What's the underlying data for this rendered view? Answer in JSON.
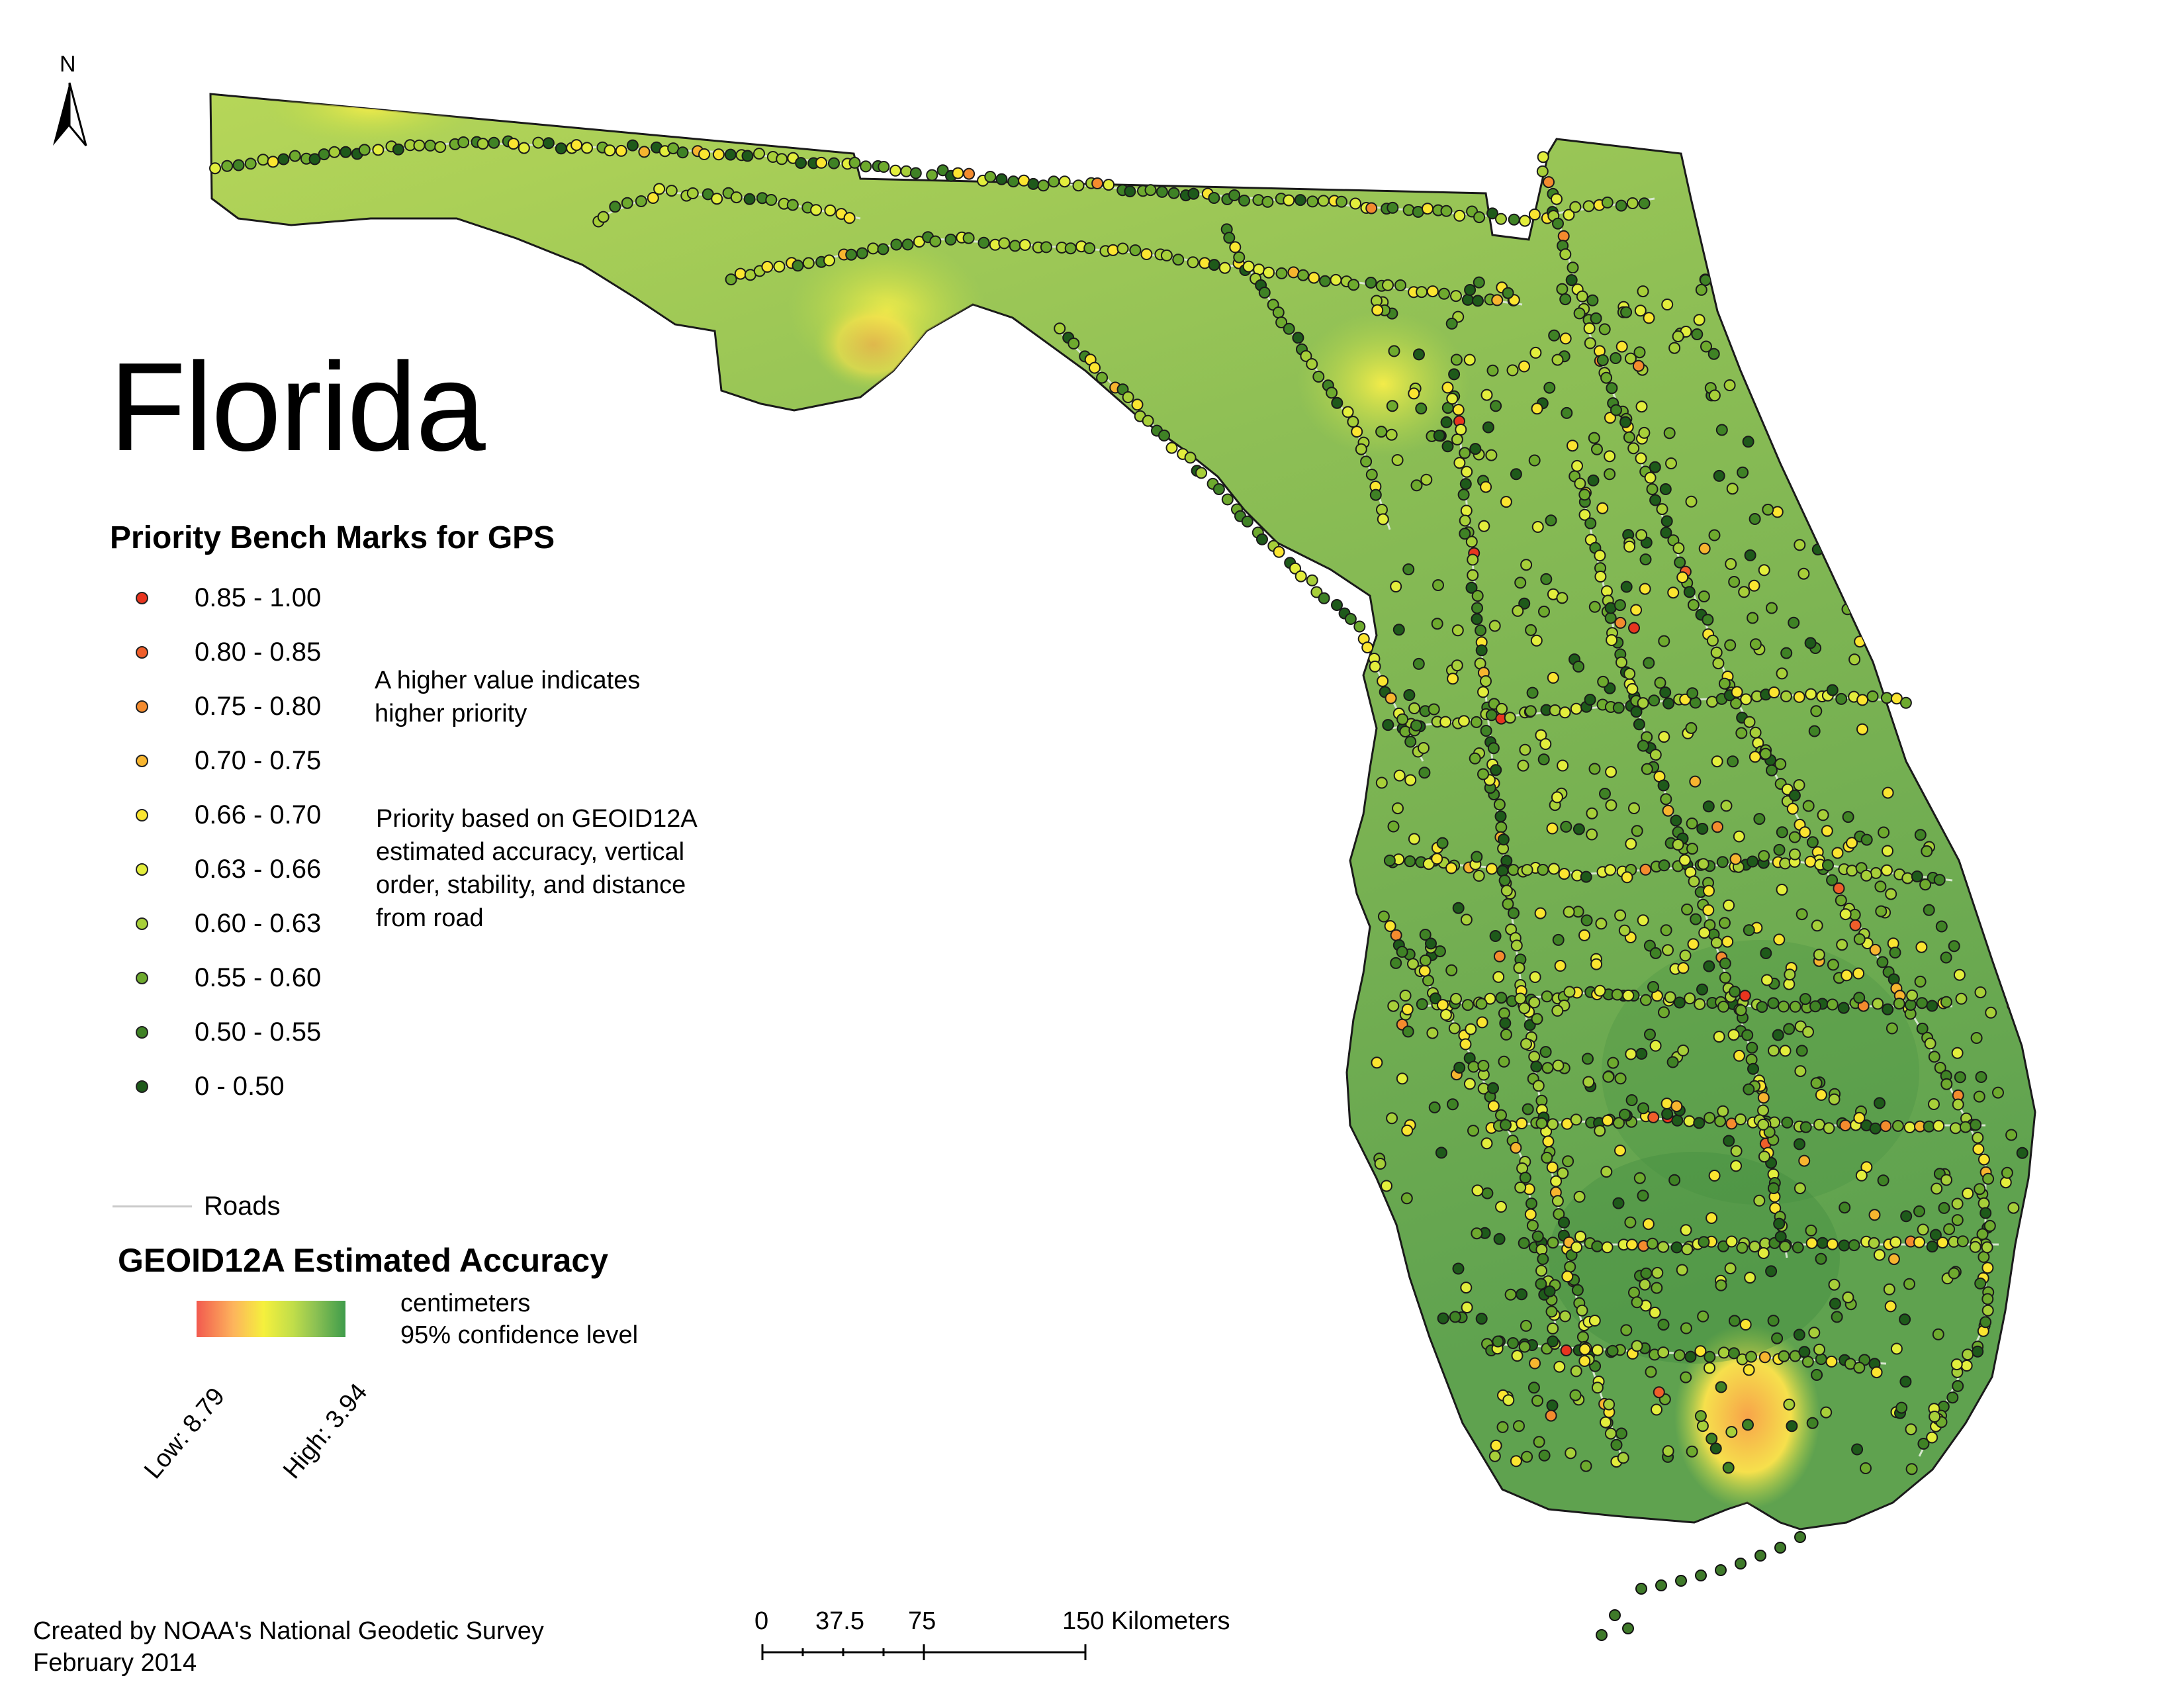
{
  "title": "Florida",
  "north_arrow": {
    "label": "N"
  },
  "priority_legend": {
    "title": "Priority Bench Marks for GPS",
    "classes": [
      {
        "label": "0.85 - 1.00",
        "color": "#e8351f"
      },
      {
        "label": "0.80 - 0.85",
        "color": "#ef5e2a"
      },
      {
        "label": "0.75 - 0.80",
        "color": "#f48b2e"
      },
      {
        "label": "0.70 - 0.75",
        "color": "#f7b52f"
      },
      {
        "label": "0.66 - 0.70",
        "color": "#fbe530"
      },
      {
        "label": "0.63 - 0.66",
        "color": "#e3ee3c"
      },
      {
        "label": "0.60 - 0.63",
        "color": "#a7cf39"
      },
      {
        "label": "0.55 - 0.60",
        "color": "#6eaa2e"
      },
      {
        "label": "0.50 - 0.55",
        "color": "#3f8225"
      },
      {
        "label": "0 - 0.50",
        "color": "#1e5a1a"
      }
    ],
    "note_1": [
      "A higher value indicates",
      "higher priority"
    ],
    "note_2": [
      "Priority based on GEOID12A",
      "estimated accuracy, vertical",
      "order, stability, and distance",
      "from road"
    ]
  },
  "roads_legend": {
    "label": "Roads",
    "color": "#c9c9c9"
  },
  "accuracy_legend": {
    "title": "GEOID12A Estimated Accuracy",
    "units": "centimeters",
    "confidence": "95% confidence level",
    "low_label": "Low: 8.79",
    "high_label": "High: 3.94",
    "low_color": "#f25a4f",
    "high_color": "#3f9c4b"
  },
  "scale_bar": {
    "ticks": [
      "0",
      "37.5",
      "75",
      "150 Kilometers"
    ]
  },
  "credit": [
    "Created by NOAA's National Geodetic Survey",
    "February 2014"
  ]
}
